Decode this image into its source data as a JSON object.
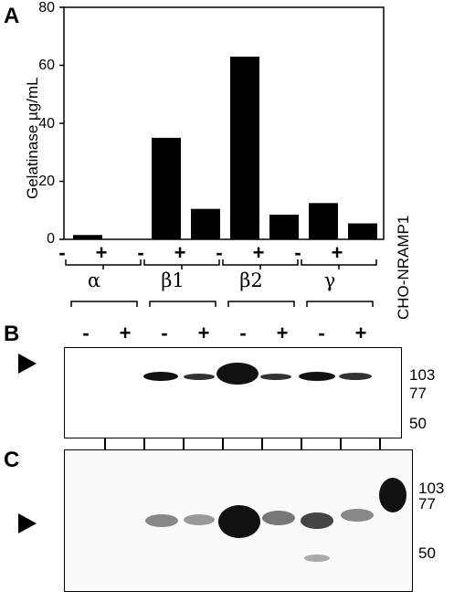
{
  "panels": {
    "a": "A",
    "b": "B",
    "c": "C"
  },
  "chart_data": {
    "type": "bar",
    "ylabel": "Gelatinase µg/mL",
    "ylim": [
      0,
      80
    ],
    "yticks": [
      "0",
      "20",
      "40",
      "60",
      "80"
    ],
    "categories": [
      "α -",
      "α +",
      "β1 -",
      "β1 +",
      "β2 -",
      "β2 +",
      "γ -",
      "γ +"
    ],
    "values": [
      1.5,
      0,
      35,
      10.5,
      63,
      8.5,
      12.5,
      5.5
    ],
    "treatment_labels": [
      "-",
      "+",
      "-",
      "+",
      "-",
      "+",
      "-",
      "+"
    ],
    "groups": [
      "α",
      "β1",
      "β2",
      "γ"
    ]
  },
  "blot_b": {
    "lane_signs": [
      "-",
      "+",
      "-",
      "+",
      "-",
      "+",
      "-",
      "+"
    ],
    "mw_markers": [
      "103",
      "77",
      "50"
    ]
  },
  "blot_c": {
    "mw_markers": [
      "103",
      "77",
      "50"
    ]
  },
  "control_lane_label": "CHO-NRAMP1"
}
